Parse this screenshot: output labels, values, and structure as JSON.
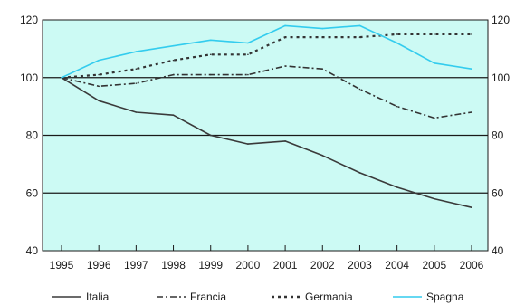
{
  "chart_data": {
    "type": "line",
    "x": [
      "1995",
      "1996",
      "1997",
      "1998",
      "1999",
      "2000",
      "2001",
      "2002",
      "2003",
      "2004",
      "2005",
      "2006"
    ],
    "ylim": [
      40,
      120
    ],
    "yticks": [
      40,
      60,
      80,
      100,
      120
    ],
    "ytick_labels": [
      "40",
      "60",
      "80",
      "100",
      "120"
    ],
    "grid": "horizontal",
    "legend_position": "bottom",
    "plot_background": "#ccfaf4",
    "series": [
      {
        "name": "Italia",
        "values": [
          100,
          92,
          88,
          87,
          80,
          77,
          78,
          73,
          67,
          62,
          58,
          55
        ],
        "color": "#3a3a3a",
        "style": "solid"
      },
      {
        "name": "Francia",
        "values": [
          100,
          97,
          98,
          101,
          101,
          101,
          104,
          103,
          96,
          90,
          86,
          88
        ],
        "color": "#333333",
        "style": "dashdot"
      },
      {
        "name": "Germania",
        "values": [
          100,
          101,
          103,
          106,
          108,
          108,
          114,
          114,
          114,
          115,
          115,
          115
        ],
        "color": "#333333",
        "style": "dotted"
      },
      {
        "name": "Spagna",
        "values": [
          100,
          106,
          109,
          111,
          113,
          112,
          118,
          117,
          118,
          112,
          105,
          103
        ],
        "color": "#33ccee",
        "style": "solid"
      }
    ]
  }
}
